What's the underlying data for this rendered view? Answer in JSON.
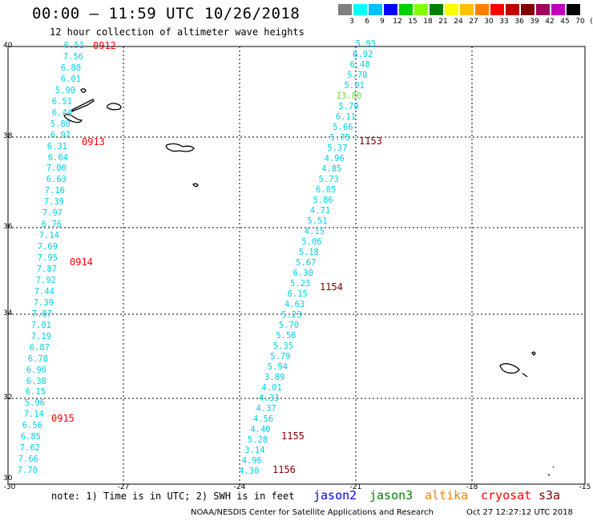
{
  "header": {
    "title": "00:00 – 11:59 UTC 10/26/2018",
    "subtitle": "12 hour collection of altimeter wave heights"
  },
  "color_scale": {
    "colors": [
      "#808080",
      "#00ffff",
      "#00c0ff",
      "#0000ff",
      "#00d000",
      "#80ff00",
      "#008000",
      "#ffff00",
      "#ffc000",
      "#ff8000",
      "#ff0000",
      "#c00000",
      "#800000",
      "#a00060",
      "#c000c0",
      "#000000"
    ],
    "labels": [
      "3",
      "6",
      "9",
      "12",
      "15",
      "18",
      "21",
      "24",
      "27",
      "30",
      "33",
      "36",
      "39",
      "42",
      "45",
      "70",
      "(ft)"
    ]
  },
  "axes": {
    "lat_labels": [
      "40",
      "38",
      "36",
      "34",
      "32",
      "30"
    ],
    "lon_labels": [
      "-30",
      "-27",
      "-24",
      "-21",
      "-18",
      "-15"
    ]
  },
  "left_track": {
    "values": [
      "6.51",
      "7.56",
      "6.80",
      "6.01",
      "5.90",
      "6.51",
      "6.44",
      "5.80",
      "6.97",
      "6.31",
      "6.64",
      "7.00",
      "6.63",
      "7.16",
      "7.39",
      "7.97",
      "6.76",
      "7.14",
      "7.69",
      "7.95",
      "7.87",
      "7.92",
      "7.44",
      "7.39",
      "7.07",
      "7.01",
      "7.19",
      "6.87",
      "6.78",
      "6.96",
      "6.38",
      "6.15",
      "5.96",
      "7.14",
      "6.56",
      "6.85",
      "7.62",
      "7.66",
      "7.70"
    ],
    "times": [
      "0912",
      "0913",
      "0914",
      "0915"
    ]
  },
  "right_track": {
    "values": [
      "5.93",
      "6.92",
      "6.48",
      "5.78",
      "5.91",
      "13.80",
      "5.79",
      "6.11",
      "5.66",
      "5.75",
      "5.37",
      "4.96",
      "4.85",
      "5.73",
      "6.05",
      "5.86",
      "4.71",
      "5.51",
      "4.15",
      "5.06",
      "5.18",
      "5.67",
      "6.30",
      "5.23",
      "6.15",
      "4.63",
      "5.23",
      "5.70",
      "5.56",
      "5.35",
      "5.79",
      "5.94",
      "3.89",
      "4.01",
      "4.33",
      "4.37",
      "4.56",
      "4.40",
      "5.28",
      "3.14",
      "4.96",
      "4.30"
    ],
    "times": [
      "1153",
      "1154",
      "1155",
      "1156"
    ]
  },
  "footer": {
    "note": "note: 1) Time is in UTC; 2) SWH is in feet",
    "satellites": [
      {
        "name": "jason2",
        "color": "#0000ff"
      },
      {
        "name": "jason3",
        "color": "#008000"
      },
      {
        "name": "altika",
        "color": "#ff8000"
      },
      {
        "name": "cryosat",
        "color": "#ff0000"
      },
      {
        "name": "s3a",
        "color": "#800000"
      }
    ],
    "credit": "NOAA/NESDIS Center for Satellite Applications and Research",
    "timestamp": "Oct 27 12:27:12 UTC 2018"
  }
}
